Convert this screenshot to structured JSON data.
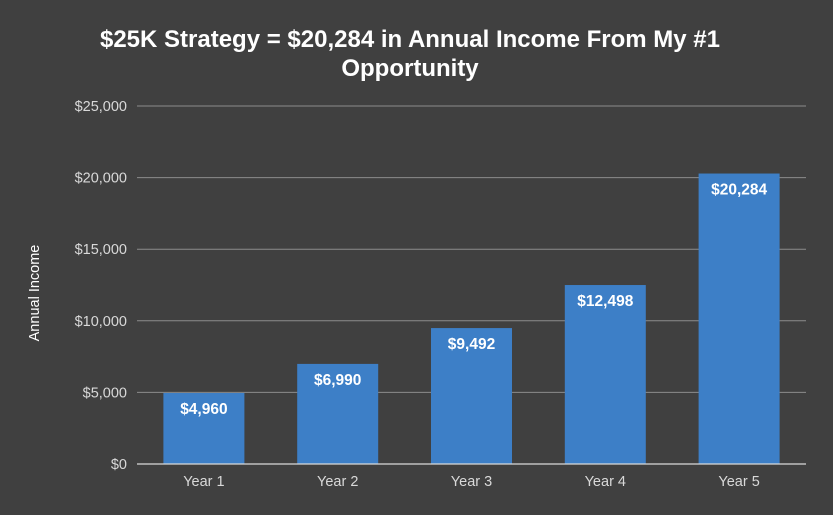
{
  "chart_data": {
    "type": "bar",
    "title_lines": [
      "$25K Strategy = $20,284 in Annual Income From My #1",
      "Opportunity"
    ],
    "ylabel": "Annual Income",
    "xlabel": "",
    "categories": [
      "Year 1",
      "Year 2",
      "Year 3",
      "Year 4",
      "Year 5"
    ],
    "values": [
      4960,
      6990,
      9492,
      12498,
      20284
    ],
    "data_labels": [
      "$4,960",
      "$6,990",
      "$9,492",
      "$12,498",
      "$20,284"
    ],
    "ylim": [
      0,
      25000
    ],
    "yticks": [
      0,
      5000,
      10000,
      15000,
      20000,
      25000
    ],
    "ytick_labels": [
      "$0",
      "$5,000",
      "$10,000",
      "$15,000",
      "$20,000",
      "$25,000"
    ],
    "grid": true,
    "legend": "none",
    "colors": {
      "background": "#404040",
      "bar": "#3d7fc7",
      "gridline": "#8c8c8c",
      "text": "#ffffff",
      "tick_text": "#d9d9d9"
    }
  }
}
